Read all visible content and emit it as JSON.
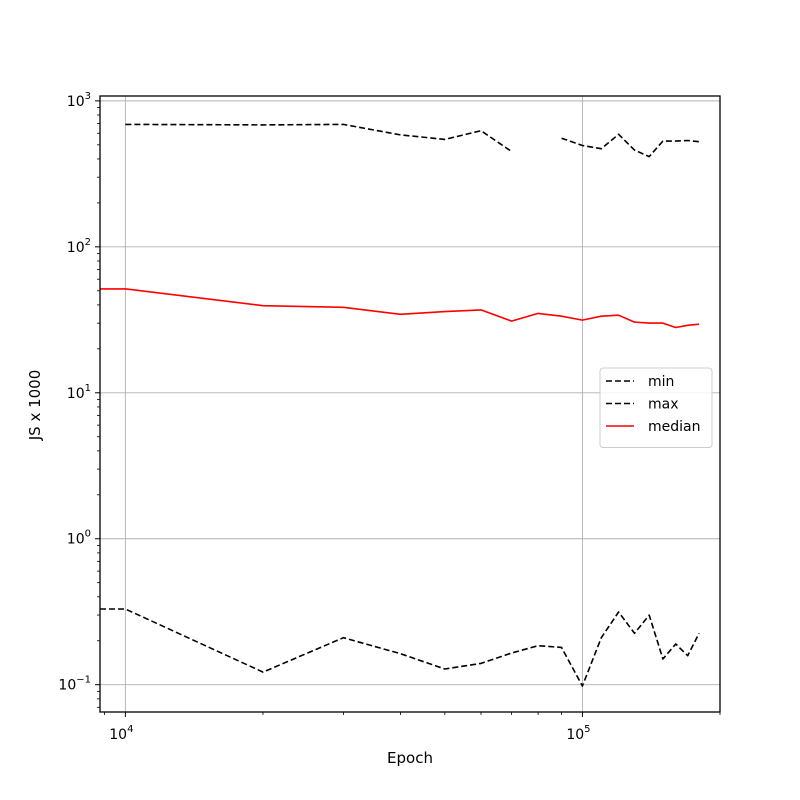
{
  "chart_data": {
    "type": "line",
    "title": "",
    "xlabel": "Epoch",
    "ylabel": "JS x 1000",
    "xscale": "log",
    "yscale": "log",
    "xlim": [
      8800,
      200000
    ],
    "ylim": [
      0.065,
      1080
    ],
    "grid": true,
    "legend_position": "center-right",
    "x_tick_labels": [
      {
        "base": "10",
        "exp": "4",
        "value": 10000
      },
      {
        "base": "10",
        "exp": "5",
        "value": 100000
      }
    ],
    "y_tick_labels": [
      {
        "base": "10",
        "exp": "3",
        "value": 1000
      },
      {
        "base": "10",
        "exp": "2",
        "value": 100
      },
      {
        "base": "10",
        "exp": "1",
        "value": 10
      },
      {
        "base": "10",
        "exp": "0",
        "value": 1
      },
      {
        "base": "10",
        "exp": "−1",
        "value": 0.1
      }
    ],
    "series": [
      {
        "name": "min",
        "color": "#000000",
        "dash": true,
        "points": [
          [
            8800,
            0.33
          ],
          [
            10000,
            0.33
          ],
          [
            20000,
            0.122
          ],
          [
            30000,
            0.21
          ],
          [
            40000,
            0.163
          ],
          [
            50000,
            0.128
          ],
          [
            60000,
            0.14
          ],
          [
            70000,
            0.165
          ],
          [
            80000,
            0.185
          ],
          [
            90000,
            0.18
          ],
          [
            100000,
            0.098
          ],
          [
            110000,
            0.21
          ],
          [
            120000,
            0.315
          ],
          [
            130000,
            0.225
          ],
          [
            140000,
            0.3
          ],
          [
            150000,
            0.15
          ],
          [
            160000,
            0.19
          ],
          [
            170000,
            0.158
          ],
          [
            180000,
            0.225
          ]
        ]
      },
      {
        "name": "max",
        "color": "#000000",
        "dash": true,
        "points": [
          [
            10000,
            690
          ],
          [
            20000,
            685
          ],
          [
            30000,
            690
          ],
          [
            40000,
            585
          ],
          [
            50000,
            545
          ],
          [
            60000,
            625
          ],
          [
            70000,
            450
          ],
          [
            80000,
            null
          ],
          [
            90000,
            555
          ],
          [
            100000,
            495
          ],
          [
            110000,
            470
          ],
          [
            120000,
            590
          ],
          [
            130000,
            460
          ],
          [
            140000,
            415
          ],
          [
            150000,
            530
          ],
          [
            160000,
            530
          ],
          [
            170000,
            535
          ],
          [
            180000,
            525
          ]
        ]
      },
      {
        "name": "median",
        "color": "#ff0000",
        "dash": false,
        "points": [
          [
            8800,
            51.5
          ],
          [
            10000,
            51.5
          ],
          [
            20000,
            39.5
          ],
          [
            30000,
            38.5
          ],
          [
            40000,
            34.5
          ],
          [
            50000,
            36
          ],
          [
            60000,
            37
          ],
          [
            70000,
            31
          ],
          [
            80000,
            35
          ],
          [
            90000,
            33.5
          ],
          [
            100000,
            31.5
          ],
          [
            110000,
            33.5
          ],
          [
            120000,
            34
          ],
          [
            130000,
            30.5
          ],
          [
            140000,
            30
          ],
          [
            150000,
            30
          ],
          [
            160000,
            28
          ],
          [
            170000,
            29
          ],
          [
            180000,
            29.5
          ]
        ]
      }
    ]
  }
}
